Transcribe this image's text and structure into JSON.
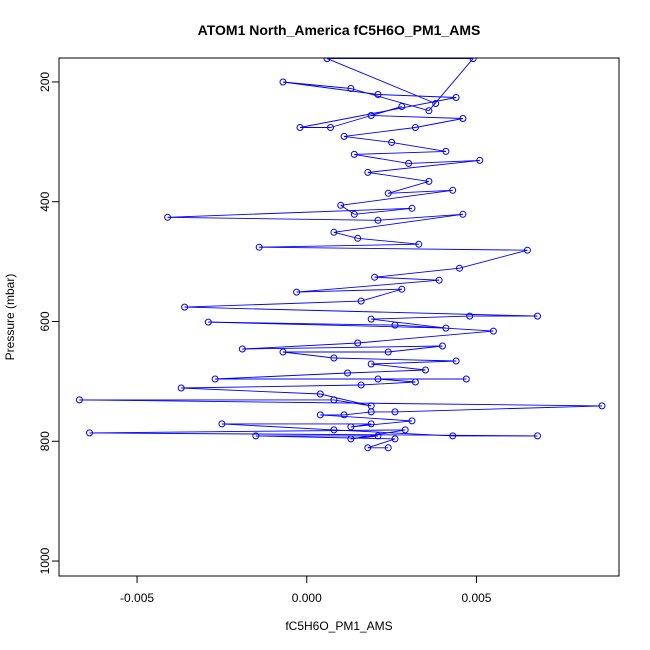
{
  "chart_data": {
    "type": "line",
    "title": "ATOM1 North_America fC5H6O_PM1_AMS",
    "xlabel": "fC5H6O_PM1_AMS",
    "ylabel": "Pressure (mbar)",
    "xlim": [
      -0.0073,
      0.0092
    ],
    "ylim": [
      1025,
      160
    ],
    "y_reversed": true,
    "x_ticks": [
      -0.005,
      0.0,
      0.005
    ],
    "x_tick_labels": [
      "-0.005",
      "0.000",
      "0.005"
    ],
    "y_ticks": [
      200,
      400,
      600,
      800,
      1000
    ],
    "y_tick_labels": [
      "200",
      "400",
      "600",
      "800",
      "1000"
    ],
    "grid": false,
    "series_color": "#0000ff",
    "series": [
      {
        "marker": "open-circle",
        "points": [
          [
            0.0024,
            811
          ],
          [
            0.0018,
            811
          ],
          [
            0.0026,
            796
          ],
          [
            -0.0015,
            791
          ],
          [
            0.0021,
            791
          ],
          [
            0.0013,
            796
          ],
          [
            0.0029,
            781
          ],
          [
            -0.0064,
            786
          ],
          [
            0.0068,
            791
          ],
          [
            0.0043,
            791
          ],
          [
            0.0008,
            781
          ],
          [
            -0.0025,
            771
          ],
          [
            0.0019,
            771
          ],
          [
            0.0013,
            776
          ],
          [
            0.0031,
            766
          ],
          [
            0.0004,
            756
          ],
          [
            0.0011,
            756
          ],
          [
            0.0019,
            751
          ],
          [
            0.0026,
            751
          ],
          [
            0.0087,
            741
          ],
          [
            -0.0067,
            731
          ],
          [
            0.0008,
            731
          ],
          [
            0.0019,
            741
          ],
          [
            0.0004,
            721
          ],
          [
            -0.0037,
            711
          ],
          [
            0.0016,
            706
          ],
          [
            0.0032,
            701
          ],
          [
            0.0021,
            696
          ],
          [
            0.0047,
            696
          ],
          [
            -0.0027,
            696
          ],
          [
            0.0012,
            686
          ],
          [
            0.0035,
            681
          ],
          [
            0.0019,
            671
          ],
          [
            0.0044,
            666
          ],
          [
            0.0008,
            661
          ],
          [
            -0.0007,
            651
          ],
          [
            0.0024,
            651
          ],
          [
            0.004,
            641
          ],
          [
            -0.0019,
            646
          ],
          [
            0.0015,
            636
          ],
          [
            0.0055,
            616
          ],
          [
            0.0026,
            606
          ],
          [
            -0.0029,
            601
          ],
          [
            0.0041,
            611
          ],
          [
            0.0019,
            596
          ],
          [
            0.0048,
            591
          ],
          [
            0.0068,
            591
          ],
          [
            -0.0036,
            576
          ],
          [
            0.0016,
            566
          ],
          [
            0.0028,
            546
          ],
          [
            -0.0003,
            551
          ],
          [
            0.0039,
            531
          ],
          [
            0.002,
            526
          ],
          [
            0.0045,
            511
          ],
          [
            0.0065,
            481
          ],
          [
            -0.0014,
            476
          ],
          [
            0.0033,
            471
          ],
          [
            0.0015,
            461
          ],
          [
            0.0008,
            451
          ],
          [
            0.0046,
            421
          ],
          [
            0.0021,
            431
          ],
          [
            -0.0041,
            426
          ],
          [
            0.0031,
            411
          ],
          [
            0.0014,
            421
          ],
          [
            0.001,
            406
          ],
          [
            0.0043,
            381
          ],
          [
            0.0024,
            386
          ],
          [
            0.0036,
            366
          ],
          [
            0.0018,
            351
          ],
          [
            0.0051,
            331
          ],
          [
            0.003,
            336
          ],
          [
            0.0014,
            321
          ],
          [
            0.0041,
            316
          ],
          [
            0.0025,
            301
          ],
          [
            0.0011,
            291
          ],
          [
            0.0032,
            276
          ],
          [
            0.0046,
            261
          ],
          [
            0.0019,
            256
          ],
          [
            0.0028,
            241
          ],
          [
            0.0007,
            276
          ],
          [
            -0.0002,
            276
          ],
          [
            0.0044,
            226
          ],
          [
            0.0021,
            221
          ],
          [
            -0.0007,
            200
          ],
          [
            0.0013,
            211
          ],
          [
            0.0036,
            248
          ],
          [
            0.0049,
            161
          ],
          [
            0.0006,
            161
          ],
          [
            0.0038,
            236
          ]
        ]
      }
    ]
  }
}
